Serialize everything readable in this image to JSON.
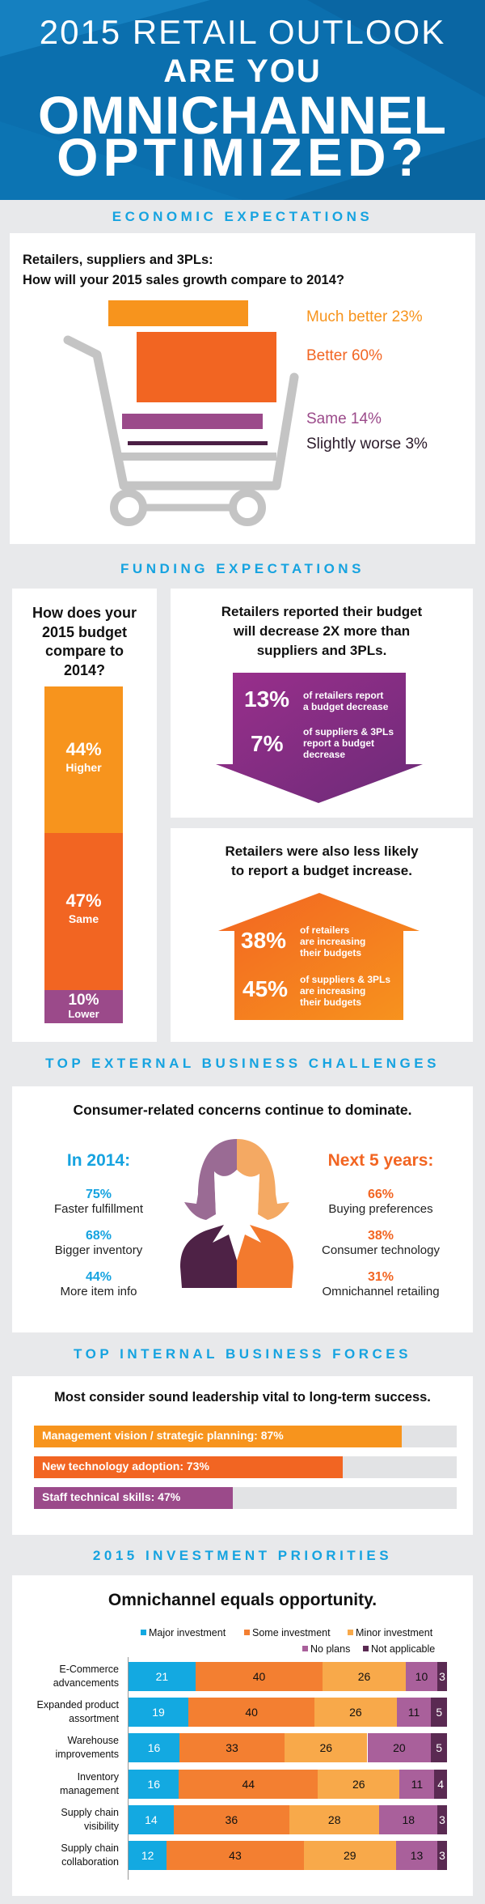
{
  "header": {
    "line1": "2015 RETAIL OUTLOOK",
    "line2": "ARE YOU",
    "line3": "OMNICHANNEL",
    "line4": "OPTIMIZED?"
  },
  "economic": {
    "title": "ECONOMIC EXPECTATIONS",
    "question_line1": "Retailers, suppliers and 3PLs:",
    "question_line2": "How will your 2015 sales growth compare to 2014?",
    "items": [
      {
        "label": "Much better 23%",
        "value": 23,
        "color": "#f7941d"
      },
      {
        "label": "Better 60%",
        "value": 60,
        "color": "#f26522"
      },
      {
        "label": "Same 14%",
        "value": 14,
        "color": "#9b4a8a"
      },
      {
        "label": "Slightly worse 3%",
        "value": 3,
        "color": "#4b1f45"
      }
    ]
  },
  "funding": {
    "title": "FUNDING EXPECTATIONS",
    "left": {
      "question": [
        "How does your",
        "2015 budget",
        "compare to",
        "2014?"
      ],
      "segments": [
        {
          "pct": "44%",
          "label": "Higher",
          "value": 44,
          "color": "#f7941d"
        },
        {
          "pct": "47%",
          "label": "Same",
          "value": 47,
          "color": "#f26522"
        },
        {
          "pct": "10%",
          "label": "Lower",
          "value": 10,
          "color": "#9b4a8a"
        }
      ]
    },
    "decrease": {
      "heading": [
        "Retailers reported their budget",
        "will decrease 2X more than",
        "suppliers and 3PLs."
      ],
      "stat1_pct": "13%",
      "stat1_text": [
        "of retailers report",
        "a budget decrease"
      ],
      "stat2_pct": "7%",
      "stat2_text": [
        "of suppliers & 3PLs",
        "report a budget",
        "decrease"
      ]
    },
    "increase": {
      "heading": [
        "Retailers were also less likely",
        "to report a budget increase."
      ],
      "stat1_pct": "38%",
      "stat1_text": [
        "of retailers",
        "are increasing",
        "their budgets"
      ],
      "stat2_pct": "45%",
      "stat2_text": [
        "of suppliers & 3PLs",
        "are increasing",
        "their budgets"
      ]
    }
  },
  "external": {
    "title": "TOP EXTERNAL BUSINESS CHALLENGES",
    "heading": "Consumer-related concerns continue to dominate.",
    "left": {
      "title": "In 2014:",
      "color": "#16a3e0",
      "items": [
        {
          "pct": "75%",
          "label": "Faster fulfillment"
        },
        {
          "pct": "68%",
          "label": "Bigger inventory"
        },
        {
          "pct": "44%",
          "label": "More item info"
        }
      ]
    },
    "right": {
      "title": "Next 5 years:",
      "color": "#f26522",
      "items": [
        {
          "pct": "66%",
          "label": "Buying preferences"
        },
        {
          "pct": "38%",
          "label": "Consumer technology"
        },
        {
          "pct": "31%",
          "label": "Omnichannel retailing"
        }
      ]
    }
  },
  "internal": {
    "title": "TOP INTERNAL BUSINESS FORCES",
    "heading": "Most consider sound leadership vital to long-term success.",
    "bars": [
      {
        "label": "Management vision / strategic planning: 87%",
        "value": 87,
        "color": "#f7941d"
      },
      {
        "label": "New technology adoption: 73%",
        "value": 73,
        "color": "#f26522"
      },
      {
        "label": "Staff technical skills: 47%",
        "value": 47,
        "color": "#9b4a8a"
      }
    ]
  },
  "investment": {
    "title": "2015 INVESTMENT PRIORITIES",
    "heading": "Omnichannel equals opportunity."
  },
  "chart_data": {
    "type": "bar",
    "orientation": "horizontal",
    "stacked": true,
    "legend": "top-right",
    "categories": [
      [
        "E-Commerce",
        "advancements"
      ],
      [
        "Expanded product",
        "assortment"
      ],
      [
        "Warehouse",
        "improvements"
      ],
      [
        "Inventory",
        "management"
      ],
      [
        "Supply chain",
        "visibility"
      ],
      [
        "Supply chain",
        "collaboration"
      ]
    ],
    "series": [
      {
        "name": "Major investment",
        "color": "#13a9e1",
        "text": "#fff",
        "values": [
          21,
          19,
          16,
          16,
          14,
          12
        ]
      },
      {
        "name": "Some investment",
        "color": "#f37f31",
        "text": "#111",
        "values": [
          40,
          40,
          33,
          44,
          36,
          43
        ]
      },
      {
        "name": "Minor investment",
        "color": "#f8a94a",
        "text": "#111",
        "values": [
          26,
          26,
          26,
          26,
          28,
          29
        ]
      },
      {
        "name": "No plans",
        "color": "#a9609b",
        "text": "#111",
        "values": [
          10,
          11,
          20,
          11,
          18,
          13
        ]
      },
      {
        "name": "Not applicable",
        "color": "#5a2a52",
        "text": "#fff",
        "values": [
          3,
          5,
          5,
          4,
          3,
          3
        ]
      }
    ]
  }
}
